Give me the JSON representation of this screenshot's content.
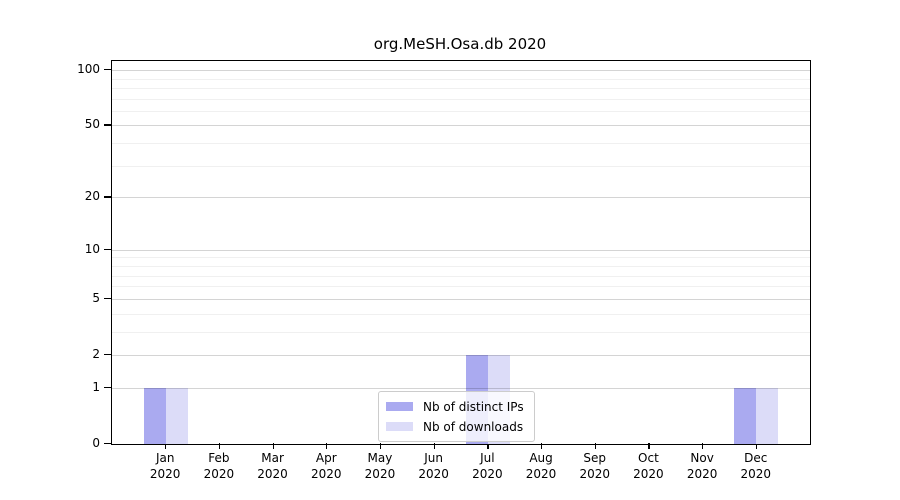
{
  "page": {
    "background": "#ffffff"
  },
  "chart_data": {
    "type": "bar",
    "title": "org.MeSH.Osa.db 2020",
    "categories": [
      "Jan 2020",
      "Feb 2020",
      "Mar 2020",
      "Apr 2020",
      "May 2020",
      "Jun 2020",
      "Jul 2020",
      "Aug 2020",
      "Sep 2020",
      "Oct 2020",
      "Nov 2020",
      "Dec 2020"
    ],
    "series": [
      {
        "name": "Nb of distinct IPs",
        "color": "#aaaaf0",
        "values": [
          1,
          0,
          0,
          0,
          0,
          0,
          2,
          0,
          0,
          0,
          0,
          1
        ]
      },
      {
        "name": "Nb of downloads",
        "color": "#dcdcf8",
        "values": [
          1,
          0,
          0,
          0,
          0,
          0,
          2,
          0,
          0,
          0,
          0,
          1
        ]
      }
    ],
    "xlabel": "",
    "ylabel": "",
    "yscale": "log1p",
    "ylim": [
      0,
      112
    ],
    "yticks": [
      0,
      1,
      2,
      5,
      10,
      20,
      50,
      100
    ],
    "minor_gridlines": [
      3,
      4,
      6,
      7,
      8,
      9,
      30,
      40,
      60,
      70,
      80,
      90
    ],
    "grid": "horizontal",
    "legend_position": "inside-bottom-center",
    "colors": {
      "axis": "#000000",
      "major_grid": "#d4d4d4",
      "minor_grid": "#efefef",
      "legend_border": "#cccccc",
      "text": "#000000"
    }
  }
}
